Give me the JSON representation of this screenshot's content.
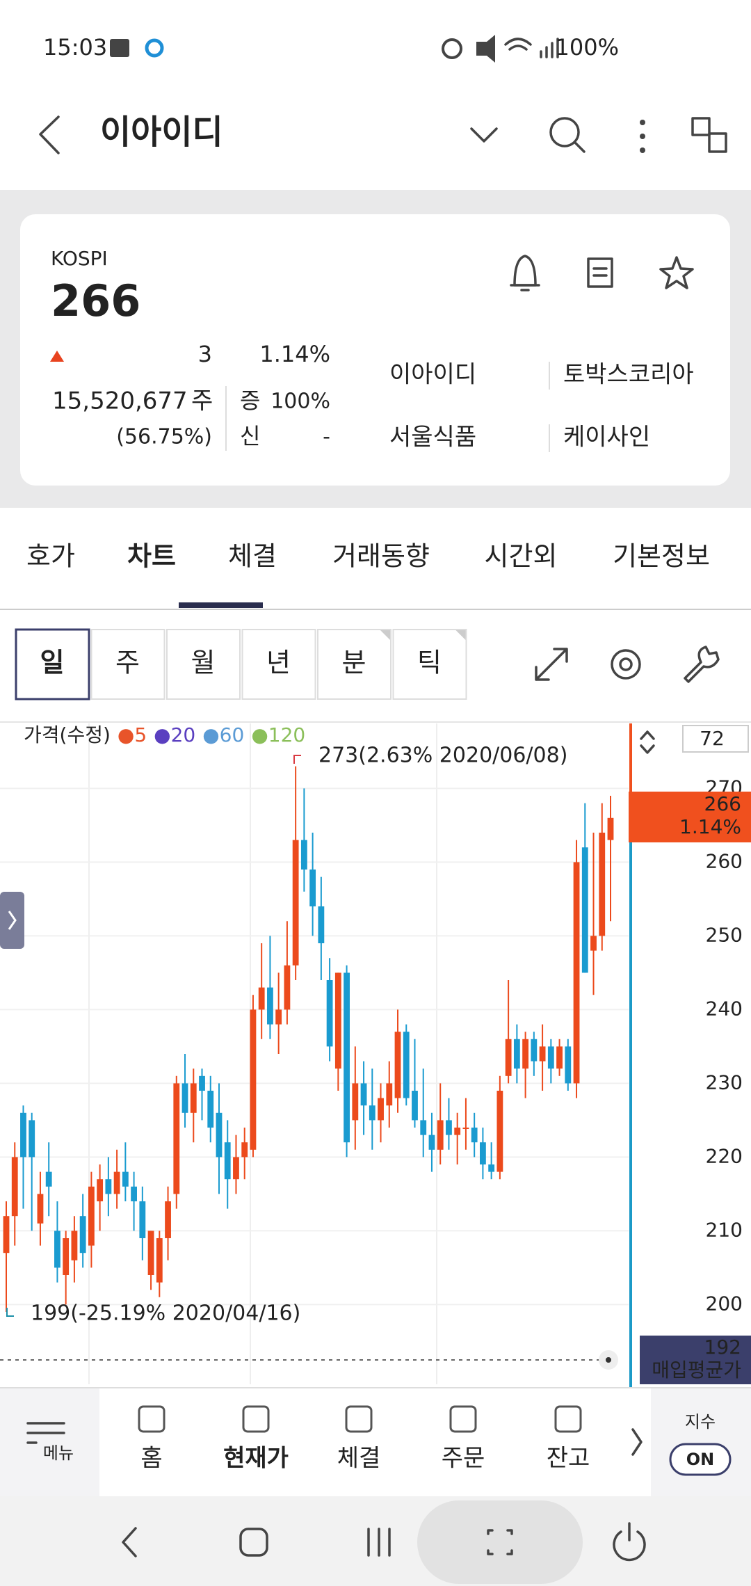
{
  "status": {
    "time": "15:03",
    "battery": "100%"
  },
  "header": {
    "title": "이아이디"
  },
  "card": {
    "market": "KOSPI",
    "price": "266",
    "change": "3",
    "change_pct": "1.14%",
    "volume": "15,520,677",
    "volume_unit": "주",
    "volume_ratio": "(56.75%)",
    "margin_label": "증",
    "margin_value": "100%",
    "credit_label": "신",
    "credit_value": "-",
    "related": [
      "이아이디",
      "토박스코리아",
      "서울식품",
      "케이사인"
    ]
  },
  "tabs": [
    "호가",
    "차트",
    "체결",
    "거래동향",
    "시간외",
    "기본정보"
  ],
  "periods": [
    "일",
    "주",
    "월",
    "년",
    "분",
    "틱"
  ],
  "chart_data": {
    "type": "candlestick",
    "legend_title": "가격(수정)",
    "ma_legend": [
      {
        "name": "5",
        "color": "#e8542a"
      },
      {
        "name": "20",
        "color": "#5a3fc0"
      },
      {
        "name": "60",
        "color": "#5b9bd5"
      },
      {
        "name": "120",
        "color": "#8bbf5a"
      }
    ],
    "up_color": "#ec4a1c",
    "down_color": "#1a9bd0",
    "candles": [
      [
        207,
        214,
        199,
        212
      ],
      [
        212,
        222,
        208,
        220
      ],
      [
        226,
        227,
        213,
        220
      ],
      [
        225,
        226,
        210,
        220
      ],
      [
        211,
        218,
        208,
        215
      ],
      [
        218,
        222,
        212,
        216
      ],
      [
        210,
        214,
        203,
        205
      ],
      [
        204,
        210,
        200,
        209
      ],
      [
        206,
        212,
        203,
        210
      ],
      [
        212,
        215,
        205,
        207
      ],
      [
        208,
        218,
        205,
        216
      ],
      [
        214,
        219,
        210,
        217
      ],
      [
        217,
        220,
        212,
        215
      ],
      [
        215,
        221,
        213,
        218
      ],
      [
        218,
        222,
        214,
        216
      ],
      [
        216,
        218,
        210,
        214
      ],
      [
        214,
        216,
        206,
        209
      ],
      [
        204,
        210,
        202,
        210
      ],
      [
        203,
        210,
        201,
        209
      ],
      [
        209,
        216,
        206,
        214
      ],
      [
        215,
        231,
        213,
        230
      ],
      [
        230,
        234,
        224,
        226
      ],
      [
        226,
        232,
        222,
        230
      ],
      [
        231,
        232,
        225,
        229
      ],
      [
        229,
        231,
        222,
        224
      ],
      [
        226,
        230,
        215,
        220
      ],
      [
        222,
        225,
        213,
        217
      ],
      [
        217,
        223,
        215,
        220
      ],
      [
        220,
        224,
        217,
        222
      ],
      [
        221,
        242,
        220,
        240
      ],
      [
        240,
        249,
        236,
        243
      ],
      [
        243,
        250,
        236,
        238
      ],
      [
        238,
        245,
        234,
        240
      ],
      [
        240,
        252,
        238,
        246
      ],
      [
        246,
        273,
        244,
        263
      ],
      [
        263,
        270,
        256,
        259
      ],
      [
        259,
        264,
        250,
        254
      ],
      [
        254,
        258,
        244,
        249
      ],
      [
        244,
        247,
        233,
        235
      ],
      [
        232,
        245,
        229,
        245
      ],
      [
        245,
        246,
        220,
        222
      ],
      [
        225,
        235,
        221,
        230
      ],
      [
        230,
        233,
        223,
        227
      ],
      [
        227,
        232,
        221,
        225
      ],
      [
        225,
        230,
        222,
        228
      ],
      [
        227,
        233,
        224,
        230
      ],
      [
        228,
        240,
        226,
        237
      ],
      [
        237,
        238,
        227,
        228
      ],
      [
        229,
        236,
        224,
        225
      ],
      [
        225,
        232,
        220,
        223
      ],
      [
        223,
        226,
        218,
        221
      ],
      [
        221,
        230,
        219,
        225
      ],
      [
        225,
        228,
        221,
        223
      ],
      [
        223,
        226,
        219,
        224
      ],
      [
        224,
        228,
        221,
        224
      ],
      [
        224,
        226,
        220,
        222
      ],
      [
        222,
        224,
        217,
        219
      ],
      [
        219,
        222,
        217,
        218
      ],
      [
        218,
        231,
        217,
        229
      ],
      [
        231,
        244,
        230,
        236
      ],
      [
        236,
        238,
        230,
        232
      ],
      [
        232,
        237,
        228,
        236
      ],
      [
        236,
        237,
        231,
        233
      ],
      [
        233,
        238,
        229,
        235
      ],
      [
        235,
        236,
        230,
        232
      ],
      [
        232,
        236,
        231,
        235
      ],
      [
        235,
        236,
        229,
        230
      ],
      [
        230,
        263,
        228,
        260
      ],
      [
        262,
        268,
        245,
        245
      ],
      [
        248,
        264,
        242,
        250
      ],
      [
        250,
        268,
        248,
        264
      ],
      [
        263,
        269,
        252,
        266
      ]
    ],
    "ylim": [
      189,
      279
    ],
    "yticks": [
      200,
      210,
      220,
      230,
      240,
      250,
      260,
      270
    ],
    "grid": true,
    "high_annotation": "273(2.63% 2020/06/08)",
    "low_annotation": "199(-25.19% 2020/04/16)",
    "visible_count": "72",
    "current_price": "266",
    "current_pct": "1.14%",
    "avg_price": "192",
    "avg_label": "매입평균가"
  },
  "bottom_nav": {
    "menu": "메뉴",
    "items": [
      "홈",
      "현재가",
      "체결",
      "주문",
      "잔고"
    ],
    "index_label": "지수",
    "toggle": "ON"
  }
}
